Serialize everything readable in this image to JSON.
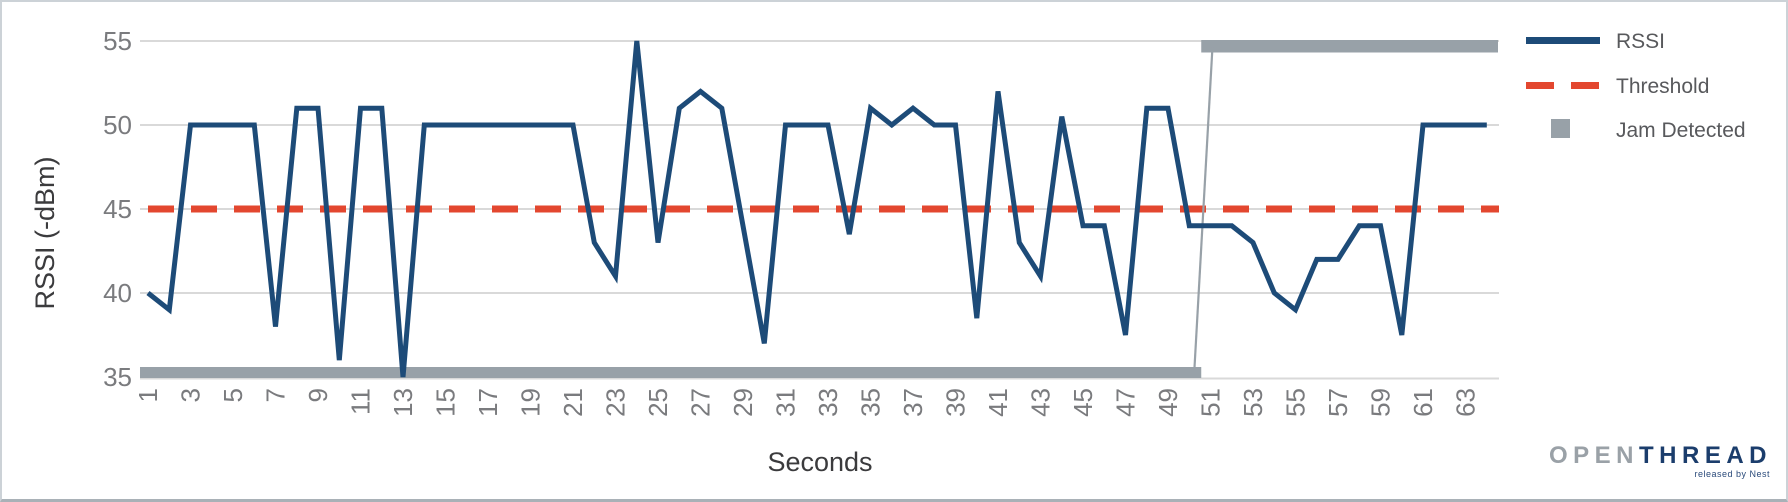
{
  "chart_data": {
    "type": "line",
    "title": "",
    "xlabel": "Seconds",
    "ylabel": "RSSI (-dBm)",
    "xlim": [
      0.7,
      65.8
    ],
    "ylim": [
      35,
      55
    ],
    "y_ticks": [
      35,
      40,
      45,
      50,
      55
    ],
    "x_ticks": [
      1,
      3,
      5,
      7,
      9,
      11,
      13,
      15,
      17,
      19,
      21,
      23,
      25,
      27,
      29,
      31,
      33,
      35,
      37,
      39,
      41,
      43,
      45,
      47,
      49,
      51,
      53,
      55,
      57,
      59,
      61,
      63
    ],
    "grid": "horizontal",
    "legend_position": "top-right",
    "x": [
      1,
      2,
      3,
      4,
      5,
      6,
      7,
      8,
      9,
      10,
      11,
      12,
      13,
      14,
      15,
      16,
      17,
      18,
      19,
      20,
      21,
      22,
      23,
      24,
      25,
      26,
      27,
      28,
      29,
      30,
      31,
      32,
      33,
      34,
      35,
      36,
      37,
      38,
      39,
      40,
      41,
      42,
      43,
      44,
      45,
      46,
      47,
      48,
      49,
      50,
      51,
      52,
      53,
      54,
      55,
      56,
      57,
      58,
      59,
      60,
      61,
      62,
      63,
      64
    ],
    "series": [
      {
        "name": "RSSI",
        "type": "line",
        "color": "#1d4b78",
        "values": [
          40,
          39,
          50,
          50,
          50,
          50,
          38,
          51,
          51,
          36,
          51,
          51,
          35,
          50,
          50,
          50,
          50,
          50,
          50,
          50,
          50,
          43,
          41,
          55,
          43,
          51,
          52,
          51,
          44,
          37,
          50,
          50,
          50,
          43.5,
          51,
          50,
          51,
          50,
          50,
          38.5,
          52,
          43,
          41,
          50.5,
          44,
          44,
          37.5,
          51,
          51,
          44,
          44,
          44,
          43,
          40,
          39,
          42,
          42,
          44,
          44,
          37.5,
          50,
          50,
          50,
          50
        ]
      },
      {
        "name": "Threshold",
        "type": "dashed-line",
        "color": "#e3472f",
        "value": 45
      },
      {
        "name": "Jam Detected",
        "type": "thick-step",
        "color": "#98a1a8",
        "low_value": 35,
        "high_value": 55,
        "low_x_range": [
          1,
          50
        ],
        "high_x_range": [
          51,
          65
        ]
      }
    ]
  },
  "axis_style": {
    "tick_color": "#7a7b7e",
    "grid_color": "#d9d9d9",
    "title_color": "#3b3b3d"
  },
  "branding": {
    "wordmark_gray": "OPEN",
    "wordmark_navy": "THREAD",
    "tagline": "released by Nest"
  }
}
